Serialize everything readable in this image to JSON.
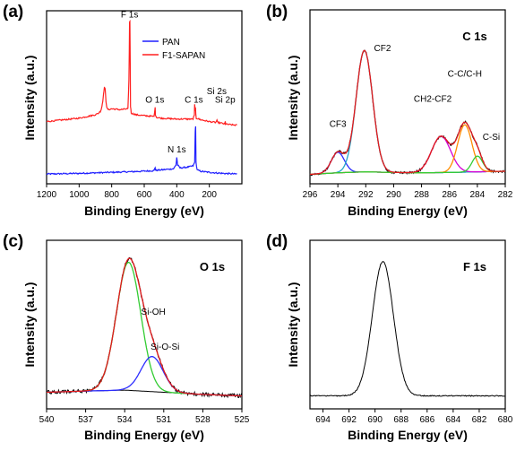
{
  "figure": {
    "panels": [
      {
        "label": "(a)",
        "title": "",
        "xlabel": "Binding Energy (eV)",
        "ylabel": "Intensity (a.u.)"
      },
      {
        "label": "(b)",
        "title": "C 1s",
        "xlabel": "Binding Energy (eV)",
        "ylabel": "Intensity (a.u.)"
      },
      {
        "label": "(c)",
        "title": "O 1s",
        "xlabel": "Binding Energy (eV)",
        "ylabel": "Intensity (a.u.)"
      },
      {
        "label": "(d)",
        "title": "F 1s",
        "xlabel": "Binding Energy (eV)",
        "ylabel": "Intensity (a.u.)"
      }
    ]
  },
  "chart_data": [
    {
      "type": "line",
      "panel": "(a)",
      "xlabel": "Binding Energy (eV)",
      "ylabel": "Intensity (a.u.)",
      "xlim": [
        1200,
        0
      ],
      "x_reversed": true,
      "ylim": [
        0,
        100
      ],
      "xticks": [
        1200,
        1000,
        800,
        600,
        400,
        200
      ],
      "yticks_shown": false,
      "legend": {
        "placement": "top-right",
        "entries": [
          "PAN",
          "F1-SAPAN"
        ]
      },
      "series": [
        {
          "name": "PAN",
          "color": "#1f1fff",
          "x": [
            1200,
            1100,
            1000,
            900,
            800,
            700,
            600,
            540,
            533,
            531,
            525,
            500,
            420,
            405,
            400,
            395,
            380,
            330,
            300,
            290,
            287,
            284,
            282,
            275,
            250,
            200,
            150,
            100,
            50,
            30
          ],
          "y": [
            5.2,
            5.4,
            5.6,
            5.9,
            6.2,
            6.5,
            6.9,
            7.2,
            9.0,
            7.6,
            7.4,
            7.6,
            8.3,
            10.5,
            15.0,
            10.5,
            8.8,
            9.3,
            10.0,
            12.0,
            30.0,
            33.0,
            12.0,
            7.6,
            6.8,
            6.2,
            5.8,
            5.5,
            5.3,
            5.2
          ]
        },
        {
          "name": "F1-SAPAN",
          "color": "#ff1f1f",
          "x": [
            1200,
            1100,
            1000,
            950,
            900,
            880,
            870,
            865,
            860,
            855,
            850,
            845,
            840,
            835,
            830,
            820,
            800,
            750,
            700,
            694,
            690,
            688,
            684,
            680,
            650,
            600,
            540,
            533,
            531,
            525,
            500,
            400,
            300,
            292,
            290,
            287,
            285,
            283,
            280,
            250,
            200,
            160,
            153,
            150,
            120,
            105,
            102,
            100,
            50,
            30
          ],
          "y": [
            36.0,
            37.0,
            38.0,
            39.0,
            40.0,
            41.0,
            42.0,
            43.0,
            45.0,
            48.0,
            52.0,
            56.0,
            55.0,
            48.0,
            44.0,
            43.0,
            43.5,
            43.0,
            43.5,
            60.0,
            94.0,
            95.0,
            45.0,
            41.0,
            40.0,
            39.5,
            39.0,
            44.0,
            40.0,
            38.5,
            38.0,
            37.5,
            37.5,
            40.0,
            46.0,
            42.0,
            44.0,
            40.0,
            38.0,
            37.0,
            36.0,
            35.5,
            37.0,
            35.5,
            35.0,
            34.5,
            36.0,
            34.5,
            34.0,
            34.0
          ]
        }
      ],
      "annotations": [
        {
          "text": "F 1s",
          "x": 690,
          "y": 97
        },
        {
          "text": "O 1s",
          "x": 535,
          "y": 47
        },
        {
          "text": "C 1s",
          "x": 295,
          "y": 47
        },
        {
          "text": "Si 2s",
          "x": 155,
          "y": 52
        },
        {
          "text": "Si 2p",
          "x": 103,
          "y": 47
        },
        {
          "text": "N 1s",
          "x": 400,
          "y": 18
        }
      ]
    },
    {
      "type": "line",
      "panel": "(b)",
      "title": "C 1s",
      "xlabel": "Binding Energy (eV)",
      "ylabel": "Intensity (a.u.)",
      "xlim": [
        296,
        282
      ],
      "x_reversed": true,
      "ylim": [
        0,
        100
      ],
      "xticks": [
        296,
        294,
        292,
        290,
        288,
        286,
        284,
        282
      ],
      "yticks_shown": false,
      "background_color": "#1a237e",
      "raw_color": "#000000",
      "envelope_color": "#e31a1c",
      "peaks": [
        {
          "name": "CF3",
          "center": 294.0,
          "height": 13,
          "fwhm": 1.1,
          "color": "#2d2dff"
        },
        {
          "name": "CF2",
          "center": 292.1,
          "height": 77,
          "fwhm": 1.4,
          "color": "#25a6c8"
        },
        {
          "name": "CH2-CF2",
          "center": 286.6,
          "height": 23,
          "fwhm": 1.6,
          "color": "#d400d4"
        },
        {
          "name": "C-C/C-H",
          "center": 284.9,
          "height": 30,
          "fwhm": 1.2,
          "color": "#ff8c00"
        },
        {
          "name": "C-Si",
          "center": 284.0,
          "height": 10,
          "fwhm": 0.9,
          "color": "#33cc33"
        }
      ],
      "background": {
        "x": [
          296,
          294,
          292,
          290,
          288,
          286,
          284,
          282
        ],
        "y": [
          2.0,
          3.0,
          3.6,
          3.2,
          3.0,
          3.2,
          3.6,
          4.0
        ]
      },
      "annotations": [
        {
          "text": "CF3",
          "x": 294.0,
          "y": 32
        },
        {
          "text": "CF2",
          "x": 290.8,
          "y": 80
        },
        {
          "text": "CH2-CF2",
          "x": 287.2,
          "y": 48
        },
        {
          "text": "C-C/C-H",
          "x": 284.9,
          "y": 64
        },
        {
          "text": "C-Si",
          "x": 283.0,
          "y": 24
        }
      ]
    },
    {
      "type": "line",
      "panel": "(c)",
      "title": "O 1s",
      "xlabel": "Binding Energy (eV)",
      "ylabel": "Intensity (a.u.)",
      "xlim": [
        540,
        525
      ],
      "x_reversed": true,
      "ylim": [
        0,
        100
      ],
      "xticks": [
        540,
        537,
        534,
        531,
        528,
        525
      ],
      "yticks_shown": false,
      "background_color": "#000000",
      "raw_color": "#000000",
      "envelope_color": "#e31a1c",
      "peaks": [
        {
          "name": "Si-OH",
          "center": 533.7,
          "height": 84,
          "fwhm": 2.2,
          "color": "#33cc33"
        },
        {
          "name": "Si-O-Si",
          "center": 531.9,
          "height": 23,
          "fwhm": 2.0,
          "color": "#2d2dff"
        }
      ],
      "background": {
        "x": [
          540,
          537,
          534,
          531,
          528,
          525
        ],
        "y": [
          5.0,
          5.8,
          6.4,
          5.0,
          3.6,
          2.6
        ]
      },
      "annotations": [
        {
          "text": "Si-OH",
          "x": 531.8,
          "y": 56
        },
        {
          "text": "Si-O-Si",
          "x": 530.9,
          "y": 33
        }
      ]
    },
    {
      "type": "line",
      "panel": "(d)",
      "title": "F 1s",
      "xlabel": "Binding Energy (eV)",
      "ylabel": "Intensity (a.u.)",
      "xlim": [
        695,
        680
      ],
      "x_reversed": true,
      "ylim": [
        0,
        100
      ],
      "xticks": [
        694,
        692,
        690,
        688,
        686,
        684,
        682,
        680
      ],
      "yticks_shown": false,
      "raw_color": "#000000",
      "peaks": [
        {
          "name": "F 1s",
          "center": 689.4,
          "height": 85,
          "fwhm": 1.9,
          "color": "#000000"
        }
      ],
      "baseline": 6.0
    }
  ]
}
